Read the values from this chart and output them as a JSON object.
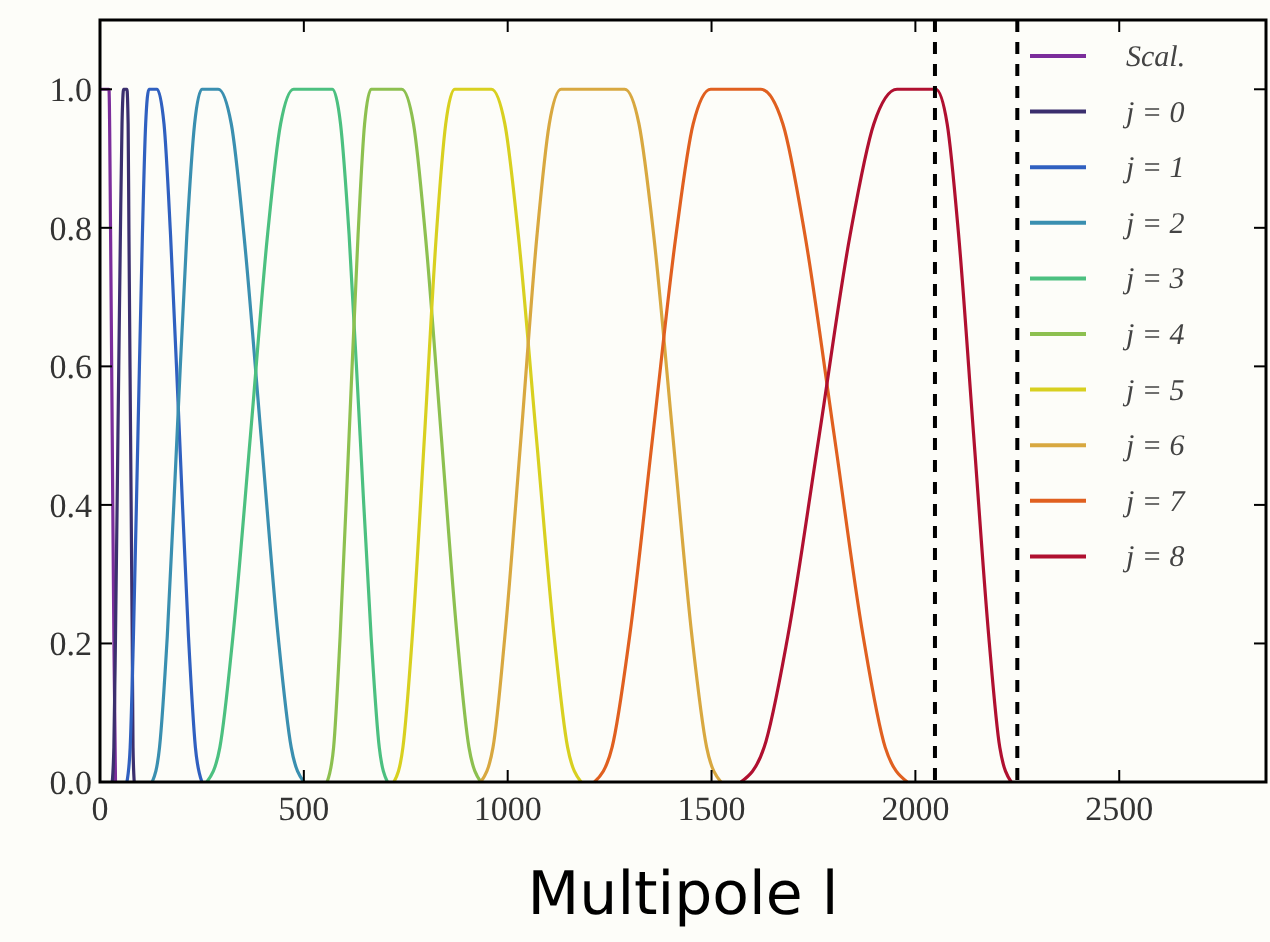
{
  "chart_data": {
    "type": "line",
    "xlabel": "Multipole l",
    "xlim": [
      0,
      2860
    ],
    "ylim": [
      0,
      1.1
    ],
    "xticks": [
      0,
      500,
      1000,
      1500,
      2000,
      2500
    ],
    "yticks": [
      {
        "value": 0,
        "label": "0.0"
      },
      {
        "value": 0.2,
        "label": "0.2"
      },
      {
        "value": 0.4,
        "label": "0.4"
      },
      {
        "value": 0.6,
        "label": "0.6"
      },
      {
        "value": 0.8,
        "label": "0.8"
      },
      {
        "value": 1,
        "label": "1.0"
      }
    ],
    "grid": false,
    "legend": "top right",
    "marker": "none",
    "line_style": "solid",
    "ref_lines": [
      {
        "axis": "x",
        "value": 2048,
        "color": "#000000",
        "line_style": "dashed"
      },
      {
        "axis": "x",
        "value": 2250,
        "color": "#000000",
        "line_style": "dashed"
      }
    ],
    "series": [
      {
        "name": "Scal.",
        "color": "#7b2d9b",
        "x": [
          0,
          22,
          26,
          30,
          34,
          38
        ],
        "values": [
          1,
          1,
          0.79,
          0.5,
          0.21,
          0
        ]
      },
      {
        "name": "j = 0",
        "color": "#3b2f6e",
        "x": [
          30,
          34,
          38,
          44,
          50,
          54,
          58,
          66,
          69,
          71,
          75,
          79,
          81,
          84
        ],
        "values": [
          0,
          0.05,
          0.21,
          0.5,
          0.79,
          0.95,
          1,
          1,
          0.95,
          0.79,
          0.5,
          0.21,
          0.05,
          0
        ]
      },
      {
        "name": "j = 1",
        "color": "#3060c0",
        "x": [
          66,
          74,
          82,
          93,
          104,
          112,
          120,
          140,
          157,
          173,
          195,
          217,
          234,
          250
        ],
        "values": [
          0,
          0.05,
          0.21,
          0.5,
          0.79,
          0.95,
          1,
          1,
          0.95,
          0.79,
          0.5,
          0.21,
          0.05,
          0
        ]
      },
      {
        "name": "j = 2",
        "color": "#3a8fb0",
        "x": [
          128,
          146,
          165,
          189,
          213,
          232,
          250,
          290,
          322,
          353,
          395,
          437,
          469,
          500
        ],
        "values": [
          0,
          0.05,
          0.21,
          0.5,
          0.79,
          0.95,
          1,
          1,
          0.95,
          0.79,
          0.5,
          0.21,
          0.05,
          0
        ]
      },
      {
        "name": "j = 3",
        "color": "#4cc080",
        "x": [
          262,
          294,
          326,
          369,
          411,
          443,
          475,
          570,
          590,
          611,
          638,
          665,
          685,
          705
        ],
        "values": [
          0,
          0.05,
          0.21,
          0.5,
          0.79,
          0.95,
          1,
          1,
          0.95,
          0.79,
          0.5,
          0.21,
          0.05,
          0
        ]
      },
      {
        "name": "j = 4",
        "color": "#8dc050",
        "x": [
          557,
          573,
          589,
          611,
          633,
          649,
          665,
          740,
          769,
          798,
          837,
          876,
          905,
          934
        ],
        "values": [
          0,
          0.05,
          0.21,
          0.5,
          0.79,
          0.95,
          1,
          1,
          0.95,
          0.79,
          0.5,
          0.21,
          0.05,
          0
        ]
      },
      {
        "name": "j = 5",
        "color": "#d8d020",
        "x": [
          721,
          743,
          766,
          796,
          825,
          848,
          870,
          960,
          993,
          1026,
          1070,
          1114,
          1147,
          1180
        ],
        "values": [
          0,
          0.05,
          0.21,
          0.5,
          0.79,
          0.95,
          1,
          1,
          0.95,
          0.79,
          0.5,
          0.21,
          0.05,
          0
        ]
      },
      {
        "name": "j = 6",
        "color": "#d8a840",
        "x": [
          934,
          964,
          993,
          1033,
          1072,
          1102,
          1131,
          1287,
          1322,
          1358,
          1405,
          1452,
          1488,
          1523
        ],
        "values": [
          0,
          0.05,
          0.21,
          0.5,
          0.79,
          0.95,
          1,
          1,
          0.95,
          0.79,
          0.5,
          0.21,
          0.05,
          0
        ]
      },
      {
        "name": "j = 7",
        "color": "#e06020",
        "x": [
          1213,
          1256,
          1299,
          1356,
          1413,
          1455,
          1498,
          1621,
          1675,
          1729,
          1801,
          1872,
          1926,
          1980
        ],
        "values": [
          0,
          0.05,
          0.21,
          0.5,
          0.79,
          0.95,
          1,
          1,
          0.95,
          0.79,
          0.5,
          0.21,
          0.05,
          0
        ]
      },
      {
        "name": "j = 8",
        "color": "#b01030",
        "x": [
          1572,
          1629,
          1687,
          1764,
          1840,
          1898,
          1955,
          2050,
          2078,
          2106,
          2143,
          2180,
          2207,
          2235
        ],
        "values": [
          0,
          0.05,
          0.21,
          0.5,
          0.79,
          0.95,
          1,
          1,
          0.95,
          0.79,
          0.5,
          0.21,
          0.05,
          0
        ]
      }
    ]
  }
}
